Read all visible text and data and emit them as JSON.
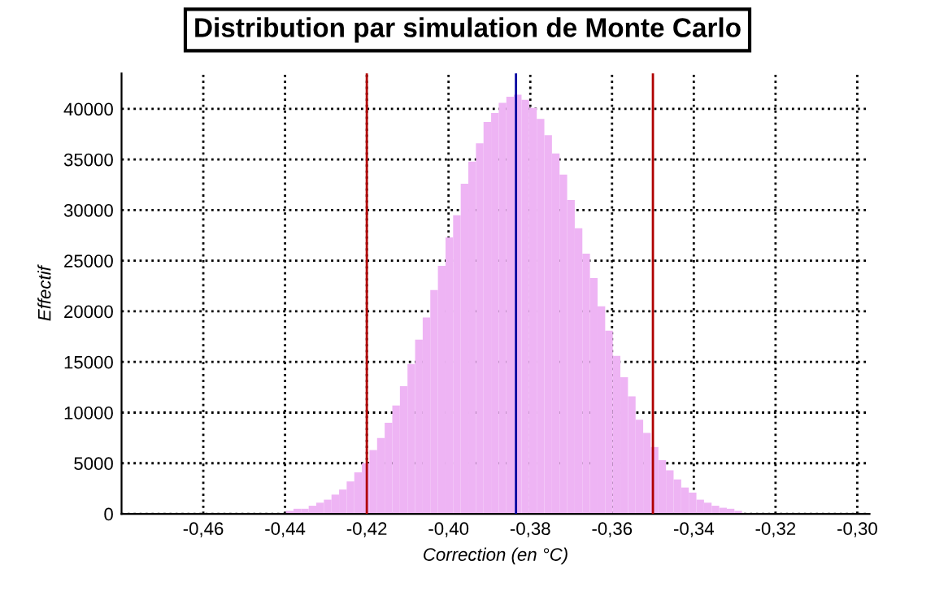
{
  "chart_data": {
    "type": "histogram",
    "title": "Distribution par simulation de Monte Carlo",
    "xlabel": "Correction (en °C)",
    "ylabel": "Effectif",
    "bins": [
      -0.4398,
      -0.43794,
      -0.43608,
      -0.43422,
      -0.43236,
      -0.4305,
      -0.42864,
      -0.42678,
      -0.42492,
      -0.42306,
      -0.4212,
      -0.41934,
      -0.41748,
      -0.41562,
      -0.41376,
      -0.4119,
      -0.41004,
      -0.40818,
      -0.40632,
      -0.40446,
      -0.4026,
      -0.40074,
      -0.39888,
      -0.39702,
      -0.39516,
      -0.3933,
      -0.39144,
      -0.38958,
      -0.38772,
      -0.38586,
      -0.384,
      -0.38214,
      -0.38028,
      -0.37842,
      -0.37656,
      -0.3747,
      -0.37284,
      -0.37098,
      -0.36912,
      -0.36726,
      -0.3654,
      -0.36354,
      -0.36168,
      -0.35982,
      -0.35796,
      -0.3561,
      -0.35424,
      -0.35238,
      -0.35052,
      -0.34866,
      -0.3468,
      -0.34494,
      -0.34308,
      -0.34122,
      -0.33936,
      -0.3375,
      -0.33564,
      -0.33378,
      -0.33192,
      -0.33006,
      -0.3282
    ],
    "values": [
      300,
      500,
      500,
      800,
      1100,
      1400,
      1900,
      2400,
      3200,
      4100,
      5000,
      6300,
      7500,
      9000,
      10700,
      12600,
      14800,
      17200,
      19400,
      22100,
      24500,
      27300,
      29500,
      32600,
      34800,
      36600,
      38700,
      39600,
      40600,
      41200,
      41400,
      40900,
      40100,
      39000,
      37400,
      35600,
      33500,
      31000,
      28200,
      25700,
      23300,
      20500,
      18100,
      15600,
      13500,
      11600,
      9300,
      8000,
      6600,
      5300,
      4300,
      3400,
      2600,
      2100,
      1400,
      1100,
      800,
      600,
      500,
      300
    ],
    "color": "#eeb4f4",
    "xlim": [
      -0.48,
      -0.297
    ],
    "ylim": [
      0,
      43500
    ],
    "xticks": [
      {
        "value": -0.46,
        "label": "-0,46"
      },
      {
        "value": -0.44,
        "label": "-0,44"
      },
      {
        "value": -0.42,
        "label": "-0,42"
      },
      {
        "value": -0.4,
        "label": "-0,40"
      },
      {
        "value": -0.38,
        "label": "-0,38"
      },
      {
        "value": -0.36,
        "label": "-0,36"
      },
      {
        "value": -0.34,
        "label": "-0,34"
      },
      {
        "value": -0.32,
        "label": "-0,32"
      },
      {
        "value": -0.3,
        "label": "-0,30"
      }
    ],
    "yticks": [
      0,
      5000,
      10000,
      15000,
      20000,
      25000,
      30000,
      35000,
      40000
    ],
    "grid": true,
    "ref_lines": [
      {
        "axis": "x",
        "value": -0.42,
        "color": "#b00000"
      },
      {
        "axis": "x",
        "value": -0.3835,
        "color": "#0000a0"
      },
      {
        "axis": "x",
        "value": -0.35,
        "color": "#b00000"
      }
    ]
  }
}
